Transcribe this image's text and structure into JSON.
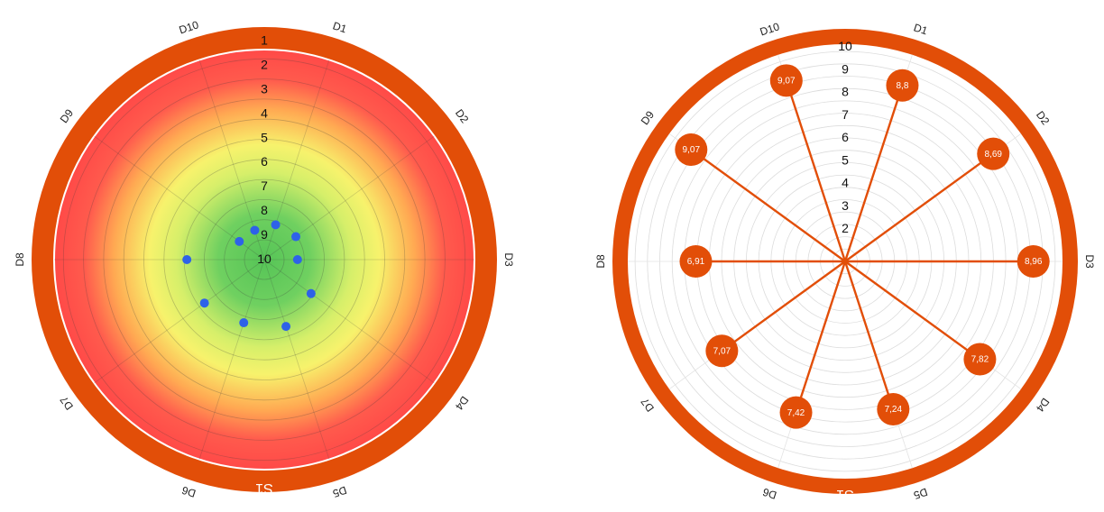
{
  "chart_data": [
    {
      "type": "radar",
      "variant": "target-dot",
      "segment_label": "S1",
      "categories": [
        "D1",
        "D2",
        "D3",
        "D4",
        "D5",
        "D6",
        "D7",
        "D8",
        "D9",
        "D10"
      ],
      "values": [
        8.8,
        8.69,
        8.96,
        7.82,
        7.24,
        7.42,
        7.07,
        6.91,
        9.07,
        9.07
      ],
      "radial_axis": {
        "min": 1,
        "max": 10,
        "reversed": true,
        "ticks": [
          "1",
          "2",
          "3",
          "4",
          "5",
          "6",
          "7",
          "8",
          "9",
          "10"
        ]
      },
      "background_gradient": [
        "#5fc85f",
        "#f5f56b",
        "#ff5a4c"
      ],
      "point_color": "#2e62e8",
      "ring_color": "#e24e08",
      "grid": true
    },
    {
      "type": "radar",
      "variant": "lollipop",
      "segment_label": "S1",
      "categories": [
        "D1",
        "D2",
        "D3",
        "D4",
        "D5",
        "D6",
        "D7",
        "D8",
        "D9",
        "D10"
      ],
      "values": [
        8.8,
        8.69,
        8.96,
        7.82,
        7.24,
        7.42,
        7.07,
        6.91,
        9.07,
        9.07
      ],
      "value_labels": [
        "8,8",
        "8,69",
        "8,96",
        "7,82",
        "7,24",
        "7,42",
        "7,07",
        "6,91",
        "9,07",
        "9,07"
      ],
      "radial_axis": {
        "min": 0,
        "max": 10,
        "reversed": false,
        "ticks": [
          "2",
          "3",
          "4",
          "5",
          "6",
          "7",
          "8",
          "9",
          "10"
        ]
      },
      "line_color": "#e24e08",
      "ring_color": "#e24e08",
      "grid": true
    }
  ]
}
